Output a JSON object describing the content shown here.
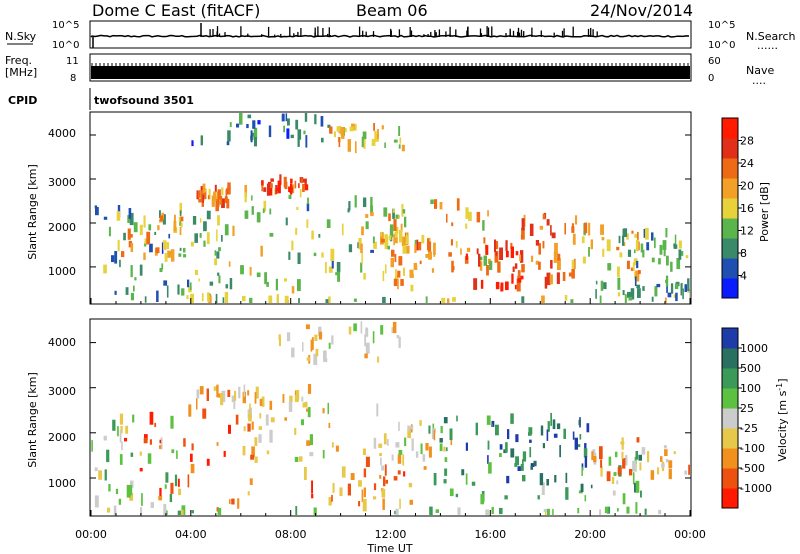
{
  "header": {
    "station": "Dome C East (fitACF)",
    "beam": "Beam 06",
    "date": "24/Nov/2014"
  },
  "summary_panels": {
    "nsky_label": "N.Sky",
    "nsky_ticks": [
      "10^5",
      "10^0"
    ],
    "nsearch_label": "N.Search",
    "nsearch_ticks": [
      "10^5",
      "10^0"
    ],
    "freq_label_1": "Freq.",
    "freq_label_2": "[MHz]",
    "freq_ticks": [
      "11",
      "8"
    ],
    "nave_label": "Nave",
    "nave_ticks": [
      "60",
      "0"
    ],
    "cpid_label": "CPID",
    "cpid_value": "twofsound 3501",
    "dots": "......",
    "dots_short": "...."
  },
  "x_axis": {
    "label": "Time UT",
    "ticks": [
      "00:00",
      "04:00",
      "08:00",
      "12:00",
      "16:00",
      "20:00",
      "00:00"
    ]
  },
  "chart_data": [
    {
      "type": "heatmap",
      "name": "power",
      "ylabel": "Slant Range [km]",
      "yticks": [
        "4000",
        "3000",
        "2000",
        "1000"
      ],
      "ylim": [
        180,
        4500
      ],
      "xlim_hours": [
        0,
        24
      ],
      "colorbar_label": "Power [dB]",
      "colorbar_ticks": [
        "28",
        "24",
        "20",
        "16",
        "12",
        "8",
        "4"
      ],
      "colors": [
        "#0a1cff",
        "#1f4fb0",
        "#3a8a6a",
        "#5cb44c",
        "#e8d23c",
        "#f2a028",
        "#ee6a14",
        "#e0301a",
        "#ff1a00"
      ],
      "blobs": [
        {
          "t0": 0.0,
          "t1": 3.6,
          "r0": 200,
          "r1": 2500,
          "level": 0.28
        },
        {
          "t0": 1.0,
          "t1": 3.6,
          "r0": 1150,
          "r1": 2200,
          "level": 0.58
        },
        {
          "t0": 3.5,
          "t1": 5.2,
          "r0": 250,
          "r1": 2400,
          "level": 0.38
        },
        {
          "t0": 4.2,
          "t1": 5.5,
          "r0": 2400,
          "r1": 2800,
          "level": 0.7
        },
        {
          "t0": 5.2,
          "t1": 8.5,
          "r0": 400,
          "r1": 2800,
          "level": 0.42
        },
        {
          "t0": 6.8,
          "t1": 8.6,
          "r0": 2750,
          "r1": 3000,
          "level": 0.78
        },
        {
          "t0": 4.0,
          "t1": 9.5,
          "r0": 3800,
          "r1": 4500,
          "level": 0.22
        },
        {
          "t0": 9.5,
          "t1": 12.5,
          "r0": 3700,
          "r1": 4200,
          "level": 0.52
        },
        {
          "t0": 8.5,
          "t1": 12.2,
          "r0": 700,
          "r1": 2600,
          "level": 0.36
        },
        {
          "t0": 10.0,
          "t1": 13.0,
          "r0": 1400,
          "r1": 2300,
          "level": 0.55
        },
        {
          "t0": 12.0,
          "t1": 13.5,
          "r0": 500,
          "r1": 1800,
          "level": 0.62
        },
        {
          "t0": 13.5,
          "t1": 16.0,
          "r0": 900,
          "r1": 2500,
          "level": 0.58
        },
        {
          "t0": 15.0,
          "t1": 17.3,
          "r0": 500,
          "r1": 1500,
          "level": 0.86
        },
        {
          "t0": 17.0,
          "t1": 19.5,
          "r0": 600,
          "r1": 2200,
          "level": 0.72
        },
        {
          "t0": 19.2,
          "t1": 22.0,
          "r0": 700,
          "r1": 1900,
          "level": 0.55
        },
        {
          "t0": 21.0,
          "t1": 24.0,
          "r0": 1000,
          "r1": 1800,
          "level": 0.38
        },
        {
          "t0": 20.0,
          "t1": 24.0,
          "r0": 300,
          "r1": 700,
          "level": 0.35
        },
        {
          "t0": 0.0,
          "t1": 24.0,
          "r0": 180,
          "r1": 320,
          "level": 0.45
        }
      ]
    },
    {
      "type": "heatmap",
      "name": "velocity",
      "ylabel": "Slant Range [km]",
      "yticks": [
        "4000",
        "3000",
        "2000",
        "1000"
      ],
      "ylim": [
        180,
        4500
      ],
      "xlim_hours": [
        0,
        24
      ],
      "colorbar_label": "Velocity [m s^-1]",
      "colorbar_ticks": [
        "1000",
        "500",
        "100",
        "25",
        "-25",
        "-100",
        "-500",
        "-1000"
      ],
      "colors": [
        "#ff1a00",
        "#ee5010",
        "#f2901e",
        "#e8c84a",
        "#cccccc",
        "#5cc040",
        "#3c9a58",
        "#2a7060",
        "#1e3ca8"
      ],
      "blobs": [
        {
          "t0": 0.0,
          "t1": 3.5,
          "r0": 300,
          "r1": 2400,
          "level": 0.55
        },
        {
          "t0": 1.0,
          "t1": 6.5,
          "r0": 300,
          "r1": 2500,
          "level": 0.2
        },
        {
          "t0": 4.0,
          "t1": 8.8,
          "r0": 2600,
          "r1": 3000,
          "level": 0.38
        },
        {
          "t0": 6.0,
          "t1": 11.5,
          "r0": 1400,
          "r1": 2600,
          "level": 0.45
        },
        {
          "t0": 7.5,
          "t1": 12.5,
          "r0": 3600,
          "r1": 4400,
          "level": 0.45
        },
        {
          "t0": 8.5,
          "t1": 13.0,
          "r0": 350,
          "r1": 1400,
          "level": 0.25
        },
        {
          "t0": 11.5,
          "t1": 14.5,
          "r0": 1200,
          "r1": 2300,
          "level": 0.45
        },
        {
          "t0": 13.5,
          "t1": 17.0,
          "r0": 400,
          "r1": 2400,
          "level": 0.74
        },
        {
          "t0": 16.5,
          "t1": 20.0,
          "r0": 1200,
          "r1": 2300,
          "level": 0.88
        },
        {
          "t0": 17.0,
          "t1": 22.0,
          "r0": 300,
          "r1": 1600,
          "level": 0.7
        },
        {
          "t0": 20.0,
          "t1": 24.0,
          "r0": 900,
          "r1": 1900,
          "level": 0.35
        },
        {
          "t0": 0.0,
          "t1": 24.0,
          "r0": 180,
          "r1": 300,
          "level": 0.6
        }
      ]
    }
  ]
}
